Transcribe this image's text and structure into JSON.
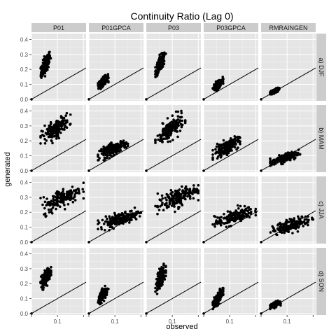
{
  "chart_data": {
    "type": "scatter",
    "title": "Continuity Ratio (Lag 0)",
    "xlabel": "observed",
    "ylabel": "generated",
    "columns": [
      "P01",
      "P01GPCA",
      "P03",
      "P03GPCA",
      "RMRAINGEN"
    ],
    "rows": [
      "a) DJF",
      "b) MAM",
      "c) JJA",
      "d) SON"
    ],
    "xlim": [
      0,
      0.21
    ],
    "ylim": [
      -0.01,
      0.44
    ],
    "x_ticks": [
      0.1
    ],
    "x_tick_labels": [
      "0.1"
    ],
    "y_ticks": [
      0,
      0.1,
      0.2,
      0.3,
      0.4
    ],
    "y_tick_labels": [
      "0.0",
      "0.1",
      "0.2",
      "0.3",
      "0.4"
    ],
    "grid": true,
    "reference_line": "y = x",
    "background": "#e5e5e5",
    "strip_color": "#cccccc",
    "point_color": "#000000",
    "clusters": [
      {
        "row": 0,
        "col": 0,
        "x": [
          0.035,
          0.075
        ],
        "y": [
          0.13,
          0.34
        ]
      },
      {
        "row": 0,
        "col": 1,
        "x": [
          0.035,
          0.075
        ],
        "y": [
          0.07,
          0.17
        ]
      },
      {
        "row": 0,
        "col": 2,
        "x": [
          0.035,
          0.075
        ],
        "y": [
          0.15,
          0.33
        ]
      },
      {
        "row": 0,
        "col": 3,
        "x": [
          0.035,
          0.075
        ],
        "y": [
          0.05,
          0.15
        ]
      },
      {
        "row": 0,
        "col": 4,
        "x": [
          0.035,
          0.07
        ],
        "y": [
          0.03,
          0.08
        ]
      },
      {
        "row": 1,
        "col": 0,
        "x": [
          0.035,
          0.15
        ],
        "y": [
          0.17,
          0.39
        ]
      },
      {
        "row": 1,
        "col": 1,
        "x": [
          0.035,
          0.15
        ],
        "y": [
          0.07,
          0.22
        ]
      },
      {
        "row": 1,
        "col": 2,
        "x": [
          0.035,
          0.15
        ],
        "y": [
          0.15,
          0.4
        ]
      },
      {
        "row": 1,
        "col": 3,
        "x": [
          0.035,
          0.14
        ],
        "y": [
          0.07,
          0.24
        ]
      },
      {
        "row": 1,
        "col": 4,
        "x": [
          0.035,
          0.15
        ],
        "y": [
          0.03,
          0.14
        ]
      },
      {
        "row": 2,
        "col": 0,
        "x": [
          0.035,
          0.2
        ],
        "y": [
          0.17,
          0.42
        ]
      },
      {
        "row": 2,
        "col": 1,
        "x": [
          0.035,
          0.2
        ],
        "y": [
          0.08,
          0.23
        ]
      },
      {
        "row": 2,
        "col": 2,
        "x": [
          0.035,
          0.2
        ],
        "y": [
          0.18,
          0.41
        ]
      },
      {
        "row": 2,
        "col": 3,
        "x": [
          0.035,
          0.2
        ],
        "y": [
          0.08,
          0.26
        ]
      },
      {
        "row": 2,
        "col": 4,
        "x": [
          0.035,
          0.2
        ],
        "y": [
          0.04,
          0.19
        ]
      },
      {
        "row": 3,
        "col": 0,
        "x": [
          0.035,
          0.075
        ],
        "y": [
          0.15,
          0.33
        ]
      },
      {
        "row": 3,
        "col": 1,
        "x": [
          0.035,
          0.075
        ],
        "y": [
          0.06,
          0.19
        ]
      },
      {
        "row": 3,
        "col": 2,
        "x": [
          0.035,
          0.075
        ],
        "y": [
          0.13,
          0.35
        ]
      },
      {
        "row": 3,
        "col": 3,
        "x": [
          0.035,
          0.075
        ],
        "y": [
          0.03,
          0.17
        ]
      },
      {
        "row": 3,
        "col": 4,
        "x": [
          0.035,
          0.075
        ],
        "y": [
          0.03,
          0.09
        ]
      }
    ]
  }
}
